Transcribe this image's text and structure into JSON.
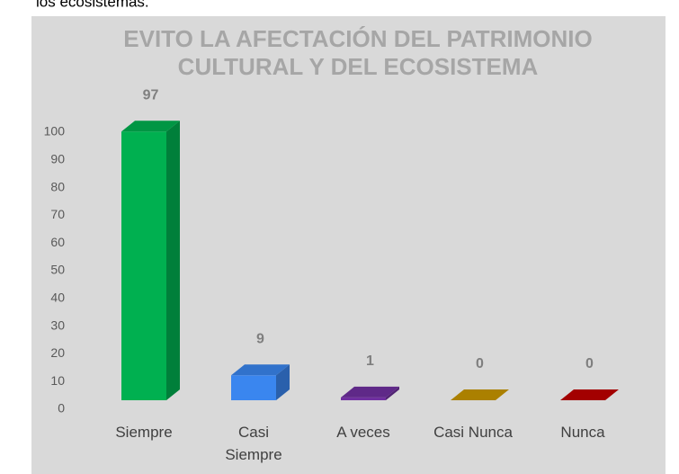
{
  "caption": "los ecosistemas.",
  "chart_data": {
    "type": "bar3d",
    "title": [
      "EVITO LA AFECTACIÓN DEL PATRIMONIO",
      "CULTURAL Y DEL ECOSISTEMA"
    ],
    "categories": [
      "Siempre",
      "Casi Siempre",
      "A veces",
      "Casi Nunca",
      "Nunca"
    ],
    "values": [
      97,
      9,
      1,
      0,
      0
    ],
    "colors": [
      "#00b050",
      "#3a86ef",
      "#7030a0",
      "#c99700",
      "#c00000"
    ],
    "ylim": [
      0,
      100
    ],
    "yticks": [
      0,
      10,
      20,
      30,
      40,
      50,
      60,
      70,
      80,
      90,
      100
    ]
  }
}
